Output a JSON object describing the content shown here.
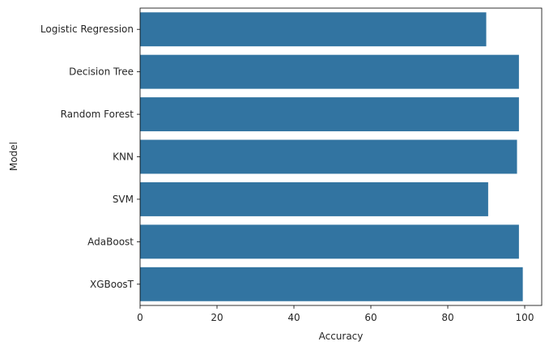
{
  "chart_data": {
    "type": "bar",
    "orientation": "horizontal",
    "categories": [
      "Logistic Regression",
      "Decision Tree",
      "Random Forest",
      "KNN",
      "SVM",
      "AdaBoost",
      "XGBoosT"
    ],
    "values": [
      90.0,
      98.5,
      98.5,
      98.0,
      90.5,
      98.5,
      99.5
    ],
    "xlabel": "Accuracy",
    "ylabel": "Model",
    "xlim": [
      0,
      105
    ],
    "xticks": [
      0,
      20,
      40,
      60,
      80,
      100
    ],
    "bar_color": "#3274a1",
    "grid": false,
    "legend": "none"
  }
}
